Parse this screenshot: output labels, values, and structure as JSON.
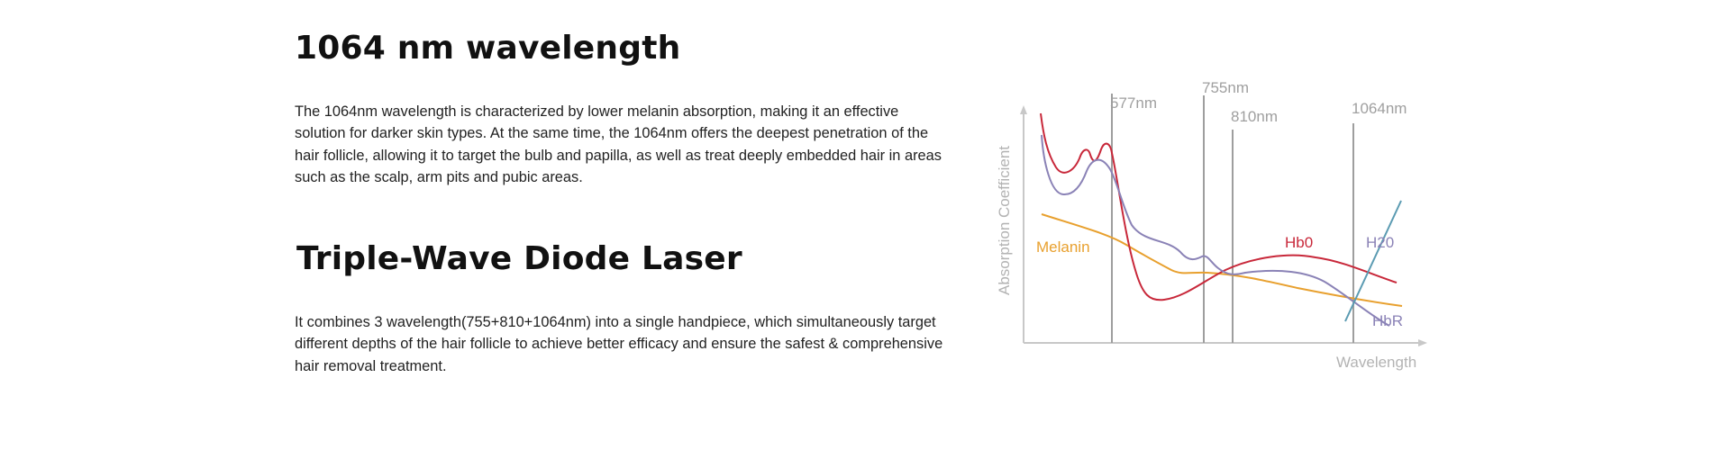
{
  "section1": {
    "title": "1064 nm wavelength",
    "body": "The 1064nm wavelength is characterized by lower melanin absorption, making it an effective solution for darker skin types.  At the same time, the 1064nm offers the deepest penetration of the hair follicle, allowing it to target the bulb and papilla, as well as treat deeply embedded hair in areas such as the scalp, arm pits and pubic areas."
  },
  "section2": {
    "title": "Triple-Wave Diode Laser",
    "body": "It combines 3 wavelength(755+810+1064nm)  into a single handpiece,  which simultaneously target different depths of the hair follicle to achieve better efficacy and ensure the safest & comprehensive hair removal treatment."
  },
  "diagram": {
    "y_axis_label": "Absorption Coefficient",
    "x_axis_label": "Wavelength",
    "wavelength_markers": [
      "577nm",
      "755nm",
      "810nm",
      "1064nm"
    ],
    "curves": {
      "melanin": {
        "label": "Melanin",
        "color": "#e8a02e"
      },
      "hbo": {
        "label": "Hb0",
        "color": "#c8283a"
      },
      "hbr": {
        "label": "HbR",
        "color": "#8a82b6"
      },
      "h2o": {
        "label": "H20",
        "color": "#5b9bb2"
      }
    },
    "axis_color": "#c8c8c8",
    "marker_color": "#9e9e9e"
  }
}
